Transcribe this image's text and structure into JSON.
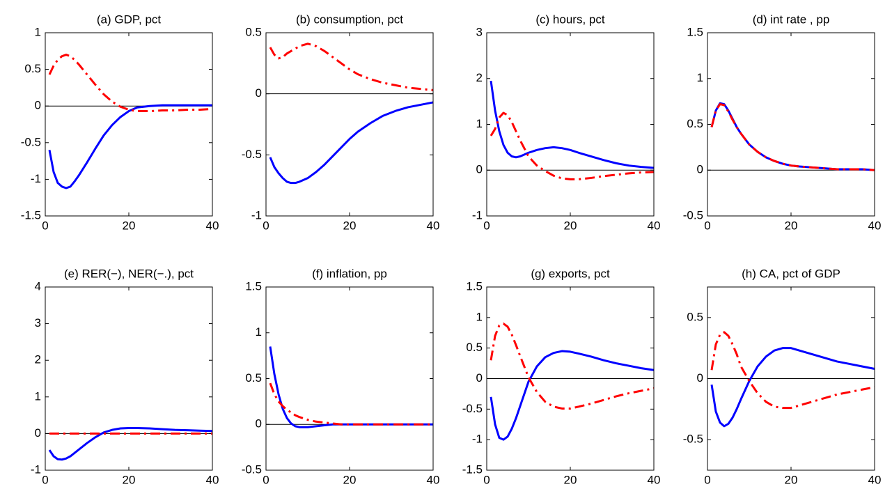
{
  "chart_data": [
    {
      "type": "line",
      "title": "(a) GDP, pct",
      "x": [
        1,
        2,
        3,
        4,
        5,
        6,
        7,
        8,
        10,
        12,
        14,
        16,
        18,
        20,
        22,
        25,
        28,
        31,
        34,
        37,
        40
      ],
      "xlim": [
        0,
        40
      ],
      "xticks": [
        0,
        20,
        40
      ],
      "ylim": [
        -1.5,
        1
      ],
      "yticks": [
        -1.5,
        -1,
        -0.5,
        0,
        0.5,
        1
      ],
      "zero_line": true,
      "series": [
        {
          "color": "#0000ff",
          "style": "solid",
          "values": [
            -0.6,
            -0.9,
            -1.05,
            -1.1,
            -1.12,
            -1.1,
            -1.03,
            -0.95,
            -0.77,
            -0.58,
            -0.4,
            -0.26,
            -0.15,
            -0.07,
            -0.02,
            0,
            0.01,
            0.01,
            0.01,
            0.01,
            0.01
          ]
        },
        {
          "color": "#ff0000",
          "style": "dashdot",
          "values": [
            0.43,
            0.55,
            0.63,
            0.68,
            0.7,
            0.68,
            0.63,
            0.57,
            0.43,
            0.29,
            0.16,
            0.06,
            -0.01,
            -0.05,
            -0.07,
            -0.07,
            -0.06,
            -0.06,
            -0.05,
            -0.05,
            -0.04
          ]
        }
      ]
    },
    {
      "type": "line",
      "title": "(b) consumption, pct",
      "x": [
        1,
        2,
        3,
        4,
        5,
        6,
        7,
        8,
        10,
        12,
        14,
        16,
        18,
        20,
        22,
        25,
        28,
        31,
        34,
        37,
        40
      ],
      "xlim": [
        0,
        40
      ],
      "xticks": [
        0,
        20,
        40
      ],
      "ylim": [
        -1,
        0.5
      ],
      "yticks": [
        -1,
        -0.5,
        0,
        0.5
      ],
      "zero_line": true,
      "series": [
        {
          "color": "#0000ff",
          "style": "solid",
          "values": [
            -0.52,
            -0.6,
            -0.65,
            -0.69,
            -0.72,
            -0.73,
            -0.73,
            -0.72,
            -0.69,
            -0.64,
            -0.58,
            -0.51,
            -0.44,
            -0.37,
            -0.31,
            -0.24,
            -0.18,
            -0.14,
            -0.11,
            -0.09,
            -0.07
          ]
        },
        {
          "color": "#ff0000",
          "style": "dashdot",
          "values": [
            0.38,
            0.32,
            0.29,
            0.3,
            0.33,
            0.35,
            0.37,
            0.39,
            0.41,
            0.39,
            0.35,
            0.3,
            0.25,
            0.2,
            0.16,
            0.12,
            0.09,
            0.07,
            0.05,
            0.04,
            0.03
          ]
        }
      ]
    },
    {
      "type": "line",
      "title": "(c) hours, pct",
      "x": [
        1,
        2,
        3,
        4,
        5,
        6,
        7,
        8,
        10,
        12,
        14,
        16,
        18,
        20,
        22,
        25,
        28,
        31,
        34,
        37,
        40
      ],
      "xlim": [
        0,
        40
      ],
      "xticks": [
        0,
        20,
        40
      ],
      "ylim": [
        -1,
        3
      ],
      "yticks": [
        -1,
        0,
        1,
        2,
        3
      ],
      "zero_line": true,
      "series": [
        {
          "color": "#0000ff",
          "style": "solid",
          "values": [
            1.95,
            1.3,
            0.85,
            0.55,
            0.38,
            0.3,
            0.28,
            0.3,
            0.38,
            0.44,
            0.48,
            0.5,
            0.48,
            0.44,
            0.38,
            0.3,
            0.22,
            0.15,
            0.1,
            0.07,
            0.05
          ]
        },
        {
          "color": "#ff0000",
          "style": "dashdot",
          "values": [
            0.75,
            0.9,
            1.15,
            1.25,
            1.2,
            1.05,
            0.85,
            0.65,
            0.3,
            0.1,
            -0.02,
            -0.12,
            -0.18,
            -0.2,
            -0.2,
            -0.17,
            -0.13,
            -0.1,
            -0.07,
            -0.05,
            -0.04
          ]
        }
      ]
    },
    {
      "type": "line",
      "title": "(d) int rate , pp",
      "x": [
        1,
        2,
        3,
        4,
        5,
        6,
        7,
        8,
        10,
        12,
        14,
        16,
        18,
        20,
        22,
        25,
        28,
        31,
        34,
        37,
        40
      ],
      "xlim": [
        0,
        40
      ],
      "xticks": [
        0,
        20,
        40
      ],
      "ylim": [
        -0.5,
        1.5
      ],
      "yticks": [
        -0.5,
        0,
        0.5,
        1,
        1.5
      ],
      "zero_line": true,
      "series": [
        {
          "color": "#0000ff",
          "style": "solid",
          "values": [
            0.47,
            0.65,
            0.73,
            0.72,
            0.65,
            0.56,
            0.47,
            0.4,
            0.28,
            0.2,
            0.14,
            0.1,
            0.07,
            0.05,
            0.04,
            0.03,
            0.02,
            0.01,
            0.01,
            0.01,
            0
          ]
        },
        {
          "color": "#ff0000",
          "style": "dashdot",
          "values": [
            0.47,
            0.65,
            0.72,
            0.71,
            0.64,
            0.55,
            0.47,
            0.4,
            0.28,
            0.2,
            0.14,
            0.1,
            0.07,
            0.05,
            0.04,
            0.03,
            0.02,
            0.01,
            0.01,
            0.01,
            0
          ]
        }
      ]
    },
    {
      "type": "line",
      "title": "(e) RER(−), NER(−.), pct",
      "x": [
        1,
        2,
        3,
        4,
        5,
        6,
        7,
        8,
        10,
        12,
        14,
        16,
        18,
        20,
        22,
        25,
        28,
        31,
        34,
        37,
        40
      ],
      "xlim": [
        0,
        40
      ],
      "xticks": [
        0,
        20,
        40
      ],
      "ylim": [
        -1,
        4
      ],
      "yticks": [
        -1,
        0,
        1,
        2,
        3,
        4
      ],
      "zero_line": true,
      "series": [
        {
          "color": "#0000ff",
          "style": "solid",
          "values": [
            -0.45,
            -0.62,
            -0.7,
            -0.71,
            -0.68,
            -0.62,
            -0.53,
            -0.44,
            -0.26,
            -0.1,
            0.03,
            0.1,
            0.14,
            0.15,
            0.15,
            0.14,
            0.12,
            0.1,
            0.09,
            0.08,
            0.07
          ]
        },
        {
          "color": "#ff0000",
          "style": "dashdot",
          "values": [
            0,
            0,
            0,
            0,
            0,
            0,
            0,
            0,
            0,
            0,
            0,
            0,
            0,
            0,
            0,
            0,
            0,
            0,
            0,
            0,
            0
          ]
        }
      ]
    },
    {
      "type": "line",
      "title": "(f) inflation, pp",
      "x": [
        1,
        2,
        3,
        4,
        5,
        6,
        7,
        8,
        10,
        12,
        14,
        16,
        18,
        20,
        22,
        25,
        28,
        31,
        34,
        37,
        40
      ],
      "xlim": [
        0,
        40
      ],
      "xticks": [
        0,
        20,
        40
      ],
      "ylim": [
        -0.5,
        1.5
      ],
      "yticks": [
        -0.5,
        0,
        0.5,
        1,
        1.5
      ],
      "zero_line": true,
      "series": [
        {
          "color": "#0000ff",
          "style": "solid",
          "values": [
            0.85,
            0.55,
            0.33,
            0.17,
            0.07,
            0.01,
            -0.02,
            -0.03,
            -0.03,
            -0.02,
            -0.01,
            0,
            0,
            0,
            0,
            0,
            0,
            0,
            0,
            0,
            0
          ]
        },
        {
          "color": "#ff0000",
          "style": "dashdot",
          "values": [
            0.45,
            0.33,
            0.25,
            0.2,
            0.16,
            0.13,
            0.1,
            0.08,
            0.05,
            0.03,
            0.02,
            0.01,
            0,
            0,
            0,
            0,
            0,
            0,
            0,
            0,
            0
          ]
        }
      ]
    },
    {
      "type": "line",
      "title": "(g) exports, pct",
      "x": [
        1,
        2,
        3,
        4,
        5,
        6,
        7,
        8,
        10,
        12,
        14,
        16,
        18,
        20,
        22,
        25,
        28,
        31,
        34,
        37,
        40
      ],
      "xlim": [
        0,
        40
      ],
      "xticks": [
        0,
        20,
        40
      ],
      "ylim": [
        -1.5,
        1.5
      ],
      "yticks": [
        -1.5,
        -1,
        -0.5,
        0,
        0.5,
        1,
        1.5
      ],
      "zero_line": true,
      "series": [
        {
          "color": "#0000ff",
          "style": "solid",
          "values": [
            -0.3,
            -0.75,
            -0.97,
            -1,
            -0.95,
            -0.82,
            -0.65,
            -0.45,
            -0.05,
            0.2,
            0.35,
            0.42,
            0.45,
            0.44,
            0.41,
            0.36,
            0.3,
            0.25,
            0.21,
            0.17,
            0.14
          ]
        },
        {
          "color": "#ff0000",
          "style": "dashdot",
          "values": [
            0.3,
            0.7,
            0.87,
            0.9,
            0.85,
            0.72,
            0.55,
            0.37,
            0.02,
            -0.22,
            -0.38,
            -0.46,
            -0.49,
            -0.49,
            -0.46,
            -0.41,
            -0.35,
            -0.29,
            -0.24,
            -0.2,
            -0.16
          ]
        }
      ]
    },
    {
      "type": "line",
      "title": "(h) CA, pct of GDP",
      "x": [
        1,
        2,
        3,
        4,
        5,
        6,
        7,
        8,
        10,
        12,
        14,
        16,
        18,
        20,
        22,
        25,
        28,
        31,
        34,
        37,
        40
      ],
      "xlim": [
        0,
        40
      ],
      "xticks": [
        0,
        20,
        40
      ],
      "ylim": [
        -0.75,
        0.75
      ],
      "yticks": [
        -0.5,
        0,
        0.5
      ],
      "zero_line": true,
      "series": [
        {
          "color": "#0000ff",
          "style": "solid",
          "values": [
            -0.05,
            -0.27,
            -0.36,
            -0.39,
            -0.37,
            -0.32,
            -0.25,
            -0.17,
            -0.02,
            0.1,
            0.18,
            0.23,
            0.25,
            0.25,
            0.23,
            0.2,
            0.17,
            0.14,
            0.12,
            0.1,
            0.08
          ]
        },
        {
          "color": "#ff0000",
          "style": "dashdot",
          "values": [
            0.07,
            0.28,
            0.36,
            0.38,
            0.35,
            0.28,
            0.2,
            0.1,
            -0.02,
            -0.12,
            -0.19,
            -0.23,
            -0.24,
            -0.24,
            -0.22,
            -0.19,
            -0.16,
            -0.13,
            -0.11,
            -0.09,
            -0.07
          ]
        }
      ]
    }
  ]
}
